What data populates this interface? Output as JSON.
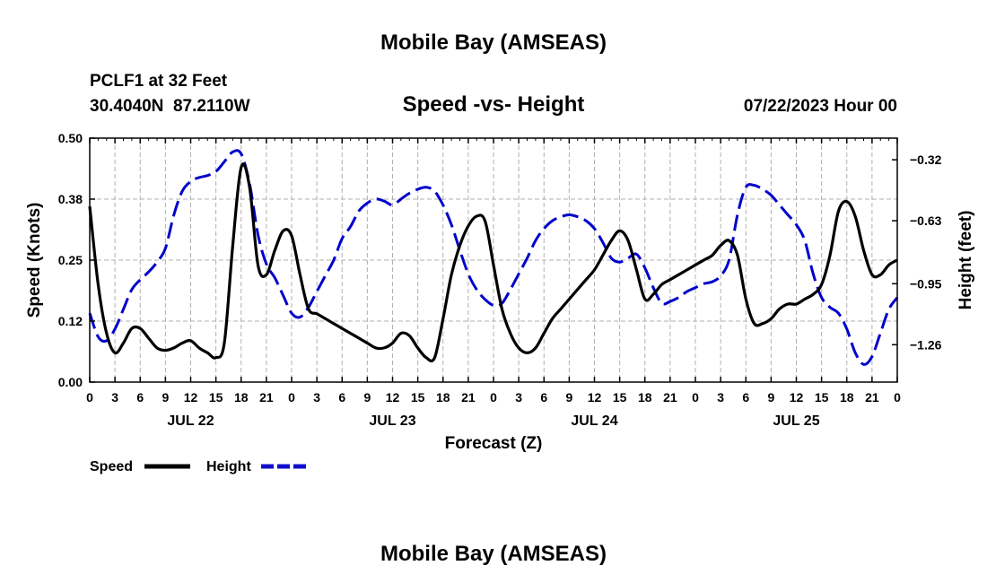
{
  "page": {
    "title": "Mobile Bay (AMSEAS)",
    "station": "PCLF1 at 32 Feet",
    "coords": "30.4040N  87.2110W",
    "subtitle": "Speed -vs- Height",
    "datetime": "07/22/2023 Hour 00",
    "footer_title": "Mobile Bay (AMSEAS)"
  },
  "chart_data": {
    "type": "line",
    "title": "Speed -vs- Height",
    "xlabel": "Forecast (Z)",
    "ylabel": "Speed (Knots)",
    "y2label": "Height (feet)",
    "x_range_hours": [
      0,
      96
    ],
    "ylim": [
      0,
      0.5
    ],
    "y2lim": [
      -1.45,
      -0.21
    ],
    "y_ticks": [
      "0.00",
      "0.12",
      "0.25",
      "0.38",
      "0.50"
    ],
    "y2_ticks": [
      {
        "value": -0.32,
        "label": "−0.32"
      },
      {
        "value": -0.63,
        "label": "−0.63"
      },
      {
        "value": -0.95,
        "label": "−0.95"
      },
      {
        "value": -1.26,
        "label": "−1.26"
      }
    ],
    "x_ticks": [
      "0",
      "3",
      "6",
      "9",
      "12",
      "15",
      "18",
      "21",
      "0",
      "3",
      "6",
      "9",
      "12",
      "15",
      "18",
      "21",
      "0",
      "3",
      "6",
      "9",
      "12",
      "15",
      "18",
      "21",
      "0",
      "3",
      "6",
      "9",
      "12",
      "15",
      "18",
      "21",
      "0"
    ],
    "date_labels": [
      {
        "hour": 12,
        "label": "JUL 22"
      },
      {
        "hour": 36,
        "label": "JUL 23"
      },
      {
        "hour": 60,
        "label": "JUL 24"
      },
      {
        "hour": 84,
        "label": "JUL 25"
      }
    ],
    "grid": true,
    "legend_position": "bottom-left",
    "series": [
      {
        "name": "Speed",
        "axis": "left",
        "color": "#000000",
        "style": "solid",
        "x": [
          0,
          1,
          2,
          3,
          4,
          5,
          6,
          7,
          8,
          9,
          10,
          11,
          12,
          13,
          14,
          15,
          16,
          17,
          18,
          19,
          20,
          21,
          22,
          23,
          24,
          25,
          26,
          27,
          28,
          29,
          30,
          31,
          32,
          33,
          34,
          35,
          36,
          37,
          38,
          39,
          40,
          41,
          42,
          43,
          44,
          45,
          46,
          47,
          48,
          49,
          50,
          51,
          52,
          53,
          54,
          55,
          56,
          57,
          58,
          59,
          60,
          61,
          62,
          63,
          64,
          65,
          66,
          67,
          68,
          69,
          70,
          71,
          72,
          73,
          74,
          75,
          76,
          77,
          78,
          79,
          80,
          81,
          82,
          83,
          84,
          85,
          86,
          87,
          88,
          89,
          90,
          91,
          92,
          93,
          94,
          95,
          96
        ],
        "values": [
          0.36,
          0.2,
          0.1,
          0.06,
          0.08,
          0.11,
          0.11,
          0.09,
          0.07,
          0.065,
          0.07,
          0.08,
          0.085,
          0.07,
          0.06,
          0.05,
          0.08,
          0.28,
          0.44,
          0.4,
          0.24,
          0.22,
          0.27,
          0.31,
          0.3,
          0.22,
          0.15,
          0.14,
          0.13,
          0.12,
          0.11,
          0.1,
          0.09,
          0.08,
          0.07,
          0.07,
          0.08,
          0.1,
          0.095,
          0.07,
          0.05,
          0.05,
          0.13,
          0.22,
          0.28,
          0.32,
          0.34,
          0.33,
          0.24,
          0.15,
          0.1,
          0.07,
          0.06,
          0.07,
          0.1,
          0.13,
          0.15,
          0.17,
          0.19,
          0.21,
          0.23,
          0.26,
          0.29,
          0.31,
          0.29,
          0.23,
          0.17,
          0.18,
          0.2,
          0.21,
          0.22,
          0.23,
          0.24,
          0.25,
          0.26,
          0.28,
          0.29,
          0.26,
          0.17,
          0.12,
          0.12,
          0.13,
          0.15,
          0.16,
          0.16,
          0.17,
          0.18,
          0.2,
          0.26,
          0.35,
          0.37,
          0.34,
          0.27,
          0.22,
          0.22,
          0.24,
          0.25
        ]
      },
      {
        "name": "Height",
        "axis": "right",
        "color": "#0000cc",
        "style": "dashed",
        "x": [
          0,
          1,
          2,
          3,
          4,
          5,
          6,
          7,
          8,
          9,
          10,
          11,
          12,
          13,
          14,
          15,
          16,
          17,
          18,
          19,
          20,
          21,
          22,
          23,
          24,
          25,
          26,
          27,
          28,
          29,
          30,
          31,
          32,
          33,
          34,
          35,
          36,
          37,
          38,
          39,
          40,
          41,
          42,
          43,
          44,
          45,
          46,
          47,
          48,
          49,
          50,
          51,
          52,
          53,
          54,
          55,
          56,
          57,
          58,
          59,
          60,
          61,
          62,
          63,
          64,
          65,
          66,
          67,
          68,
          69,
          70,
          71,
          72,
          73,
          74,
          75,
          76,
          77,
          78,
          79,
          80,
          81,
          82,
          83,
          84,
          85,
          86,
          87,
          88,
          89,
          90,
          91,
          92,
          93,
          94,
          95,
          96
        ],
        "values": [
          -1.1,
          -1.22,
          -1.24,
          -1.18,
          -1.08,
          -0.98,
          -0.93,
          -0.89,
          -0.84,
          -0.77,
          -0.6,
          -0.48,
          -0.43,
          -0.41,
          -0.4,
          -0.38,
          -0.33,
          -0.28,
          -0.29,
          -0.44,
          -0.7,
          -0.85,
          -0.92,
          -1.01,
          -1.1,
          -1.12,
          -1.07,
          -0.99,
          -0.91,
          -0.83,
          -0.72,
          -0.66,
          -0.58,
          -0.54,
          -0.52,
          -0.53,
          -0.55,
          -0.52,
          -0.49,
          -0.47,
          -0.46,
          -0.48,
          -0.55,
          -0.65,
          -0.78,
          -0.9,
          -0.98,
          -1.03,
          -1.06,
          -1.05,
          -0.98,
          -0.9,
          -0.82,
          -0.73,
          -0.67,
          -0.63,
          -0.61,
          -0.6,
          -0.61,
          -0.63,
          -0.67,
          -0.74,
          -0.82,
          -0.84,
          -0.82,
          -0.8,
          -0.87,
          -0.97,
          -1.05,
          -1.04,
          -1.02,
          -0.99,
          -0.97,
          -0.95,
          -0.94,
          -0.91,
          -0.83,
          -0.6,
          -0.46,
          -0.45,
          -0.47,
          -0.5,
          -0.55,
          -0.6,
          -0.65,
          -0.73,
          -0.9,
          -1.02,
          -1.07,
          -1.1,
          -1.18,
          -1.3,
          -1.36,
          -1.32,
          -1.2,
          -1.08,
          -1.02
        ]
      }
    ]
  }
}
